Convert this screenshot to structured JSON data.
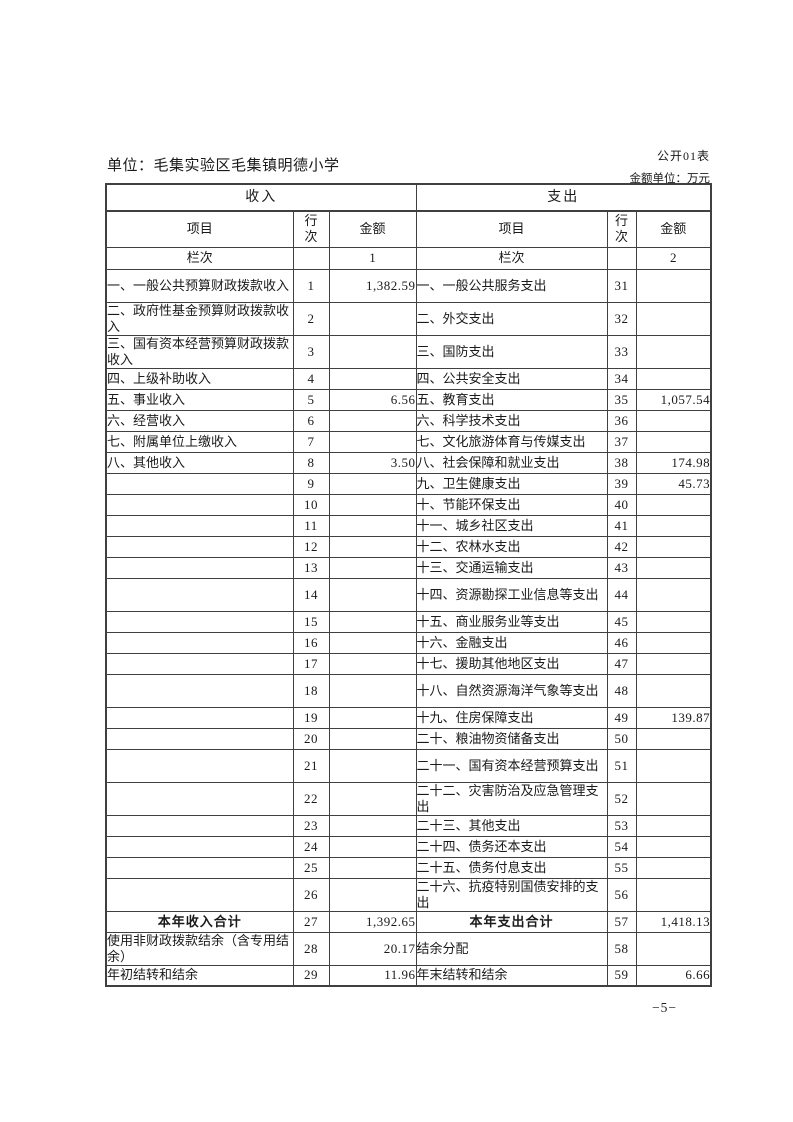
{
  "header": {
    "form_label": "公开01表",
    "unit_line": "单位：毛集实验区毛集镇明德小学",
    "amount_unit": "金额单位：万元"
  },
  "table": {
    "income_header": "收入",
    "expense_header": "支出",
    "col_item": "项目",
    "col_line": "行\n次",
    "col_amount": "金额",
    "lanci_label": "栏次",
    "income_col_index": "1",
    "expense_col_index": "2",
    "rows": [
      {
        "income_item": "一、一般公共预算财政拨款收入",
        "income_line": "1",
        "income_amount": "1,382.59",
        "expense_item": "一、一般公共服务支出",
        "expense_line": "31",
        "expense_amount": ""
      },
      {
        "income_item": "二、政府性基金预算财政拨款收入",
        "income_line": "2",
        "income_amount": "",
        "expense_item": "二、外交支出",
        "expense_line": "32",
        "expense_amount": ""
      },
      {
        "income_item": "三、国有资本经营预算财政拨款收入",
        "income_line": "3",
        "income_amount": "",
        "expense_item": "三、国防支出",
        "expense_line": "33",
        "expense_amount": ""
      },
      {
        "income_item": "四、上级补助收入",
        "income_line": "4",
        "income_amount": "",
        "expense_item": "四、公共安全支出",
        "expense_line": "34",
        "expense_amount": ""
      },
      {
        "income_item": "五、事业收入",
        "income_line": "5",
        "income_amount": "6.56",
        "expense_item": "五、教育支出",
        "expense_line": "35",
        "expense_amount": "1,057.54"
      },
      {
        "income_item": "六、经营收入",
        "income_line": "6",
        "income_amount": "",
        "expense_item": "六、科学技术支出",
        "expense_line": "36",
        "expense_amount": ""
      },
      {
        "income_item": "七、附属单位上缴收入",
        "income_line": "7",
        "income_amount": "",
        "expense_item": "七、文化旅游体育与传媒支出",
        "expense_line": "37",
        "expense_amount": ""
      },
      {
        "income_item": "八、其他收入",
        "income_line": "8",
        "income_amount": "3.50",
        "expense_item": "八、社会保障和就业支出",
        "expense_line": "38",
        "expense_amount": "174.98"
      },
      {
        "income_item": "",
        "income_line": "9",
        "income_amount": "",
        "expense_item": "九、卫生健康支出",
        "expense_line": "39",
        "expense_amount": "45.73"
      },
      {
        "income_item": "",
        "income_line": "10",
        "income_amount": "",
        "expense_item": "十、节能环保支出",
        "expense_line": "40",
        "expense_amount": ""
      },
      {
        "income_item": "",
        "income_line": "11",
        "income_amount": "",
        "expense_item": "十一、城乡社区支出",
        "expense_line": "41",
        "expense_amount": ""
      },
      {
        "income_item": "",
        "income_line": "12",
        "income_amount": "",
        "expense_item": "十二、农林水支出",
        "expense_line": "42",
        "expense_amount": ""
      },
      {
        "income_item": "",
        "income_line": "13",
        "income_amount": "",
        "expense_item": "十三、交通运输支出",
        "expense_line": "43",
        "expense_amount": ""
      },
      {
        "income_item": "",
        "income_line": "14",
        "income_amount": "",
        "expense_item": "十四、资源勘探工业信息等支出",
        "expense_line": "44",
        "expense_amount": ""
      },
      {
        "income_item": "",
        "income_line": "15",
        "income_amount": "",
        "expense_item": "十五、商业服务业等支出",
        "expense_line": "45",
        "expense_amount": ""
      },
      {
        "income_item": "",
        "income_line": "16",
        "income_amount": "",
        "expense_item": "十六、金融支出",
        "expense_line": "46",
        "expense_amount": ""
      },
      {
        "income_item": "",
        "income_line": "17",
        "income_amount": "",
        "expense_item": "十七、援助其他地区支出",
        "expense_line": "47",
        "expense_amount": ""
      },
      {
        "income_item": "",
        "income_line": "18",
        "income_amount": "",
        "expense_item": "十八、自然资源海洋气象等支出",
        "expense_line": "48",
        "expense_amount": ""
      },
      {
        "income_item": "",
        "income_line": "19",
        "income_amount": "",
        "expense_item": "十九、住房保障支出",
        "expense_line": "49",
        "expense_amount": "139.87"
      },
      {
        "income_item": "",
        "income_line": "20",
        "income_amount": "",
        "expense_item": "二十、粮油物资储备支出",
        "expense_line": "50",
        "expense_amount": ""
      },
      {
        "income_item": "",
        "income_line": "21",
        "income_amount": "",
        "expense_item": "二十一、国有资本经营预算支出",
        "expense_line": "51",
        "expense_amount": ""
      },
      {
        "income_item": "",
        "income_line": "22",
        "income_amount": "",
        "expense_item": "二十二、灾害防治及应急管理支出",
        "expense_line": "52",
        "expense_amount": ""
      },
      {
        "income_item": "",
        "income_line": "23",
        "income_amount": "",
        "expense_item": "二十三、其他支出",
        "expense_line": "53",
        "expense_amount": ""
      },
      {
        "income_item": "",
        "income_line": "24",
        "income_amount": "",
        "expense_item": "二十四、债务还本支出",
        "expense_line": "54",
        "expense_amount": ""
      },
      {
        "income_item": "",
        "income_line": "25",
        "income_amount": "",
        "expense_item": "二十五、债务付息支出",
        "expense_line": "55",
        "expense_amount": ""
      },
      {
        "income_item": "",
        "income_line": "26",
        "income_amount": "",
        "expense_item": "二十六、抗疫特别国债安排的支出",
        "expense_line": "56",
        "expense_amount": ""
      },
      {
        "income_item": "本年收入合计",
        "income_line": "27",
        "income_amount": "1,392.65",
        "expense_item": "本年支出合计",
        "expense_line": "57",
        "expense_amount": "1,418.13",
        "total": true
      },
      {
        "income_item": "使用非财政拨款结余（含专用结余）",
        "income_line": "28",
        "income_amount": "20.17",
        "expense_item": "结余分配",
        "expense_line": "58",
        "expense_amount": ""
      },
      {
        "income_item": "年初结转和结余",
        "income_line": "29",
        "income_amount": "11.96",
        "expense_item": "年末结转和结余",
        "expense_line": "59",
        "expense_amount": "6.66"
      }
    ]
  },
  "footer": {
    "page_number": "−5−"
  }
}
